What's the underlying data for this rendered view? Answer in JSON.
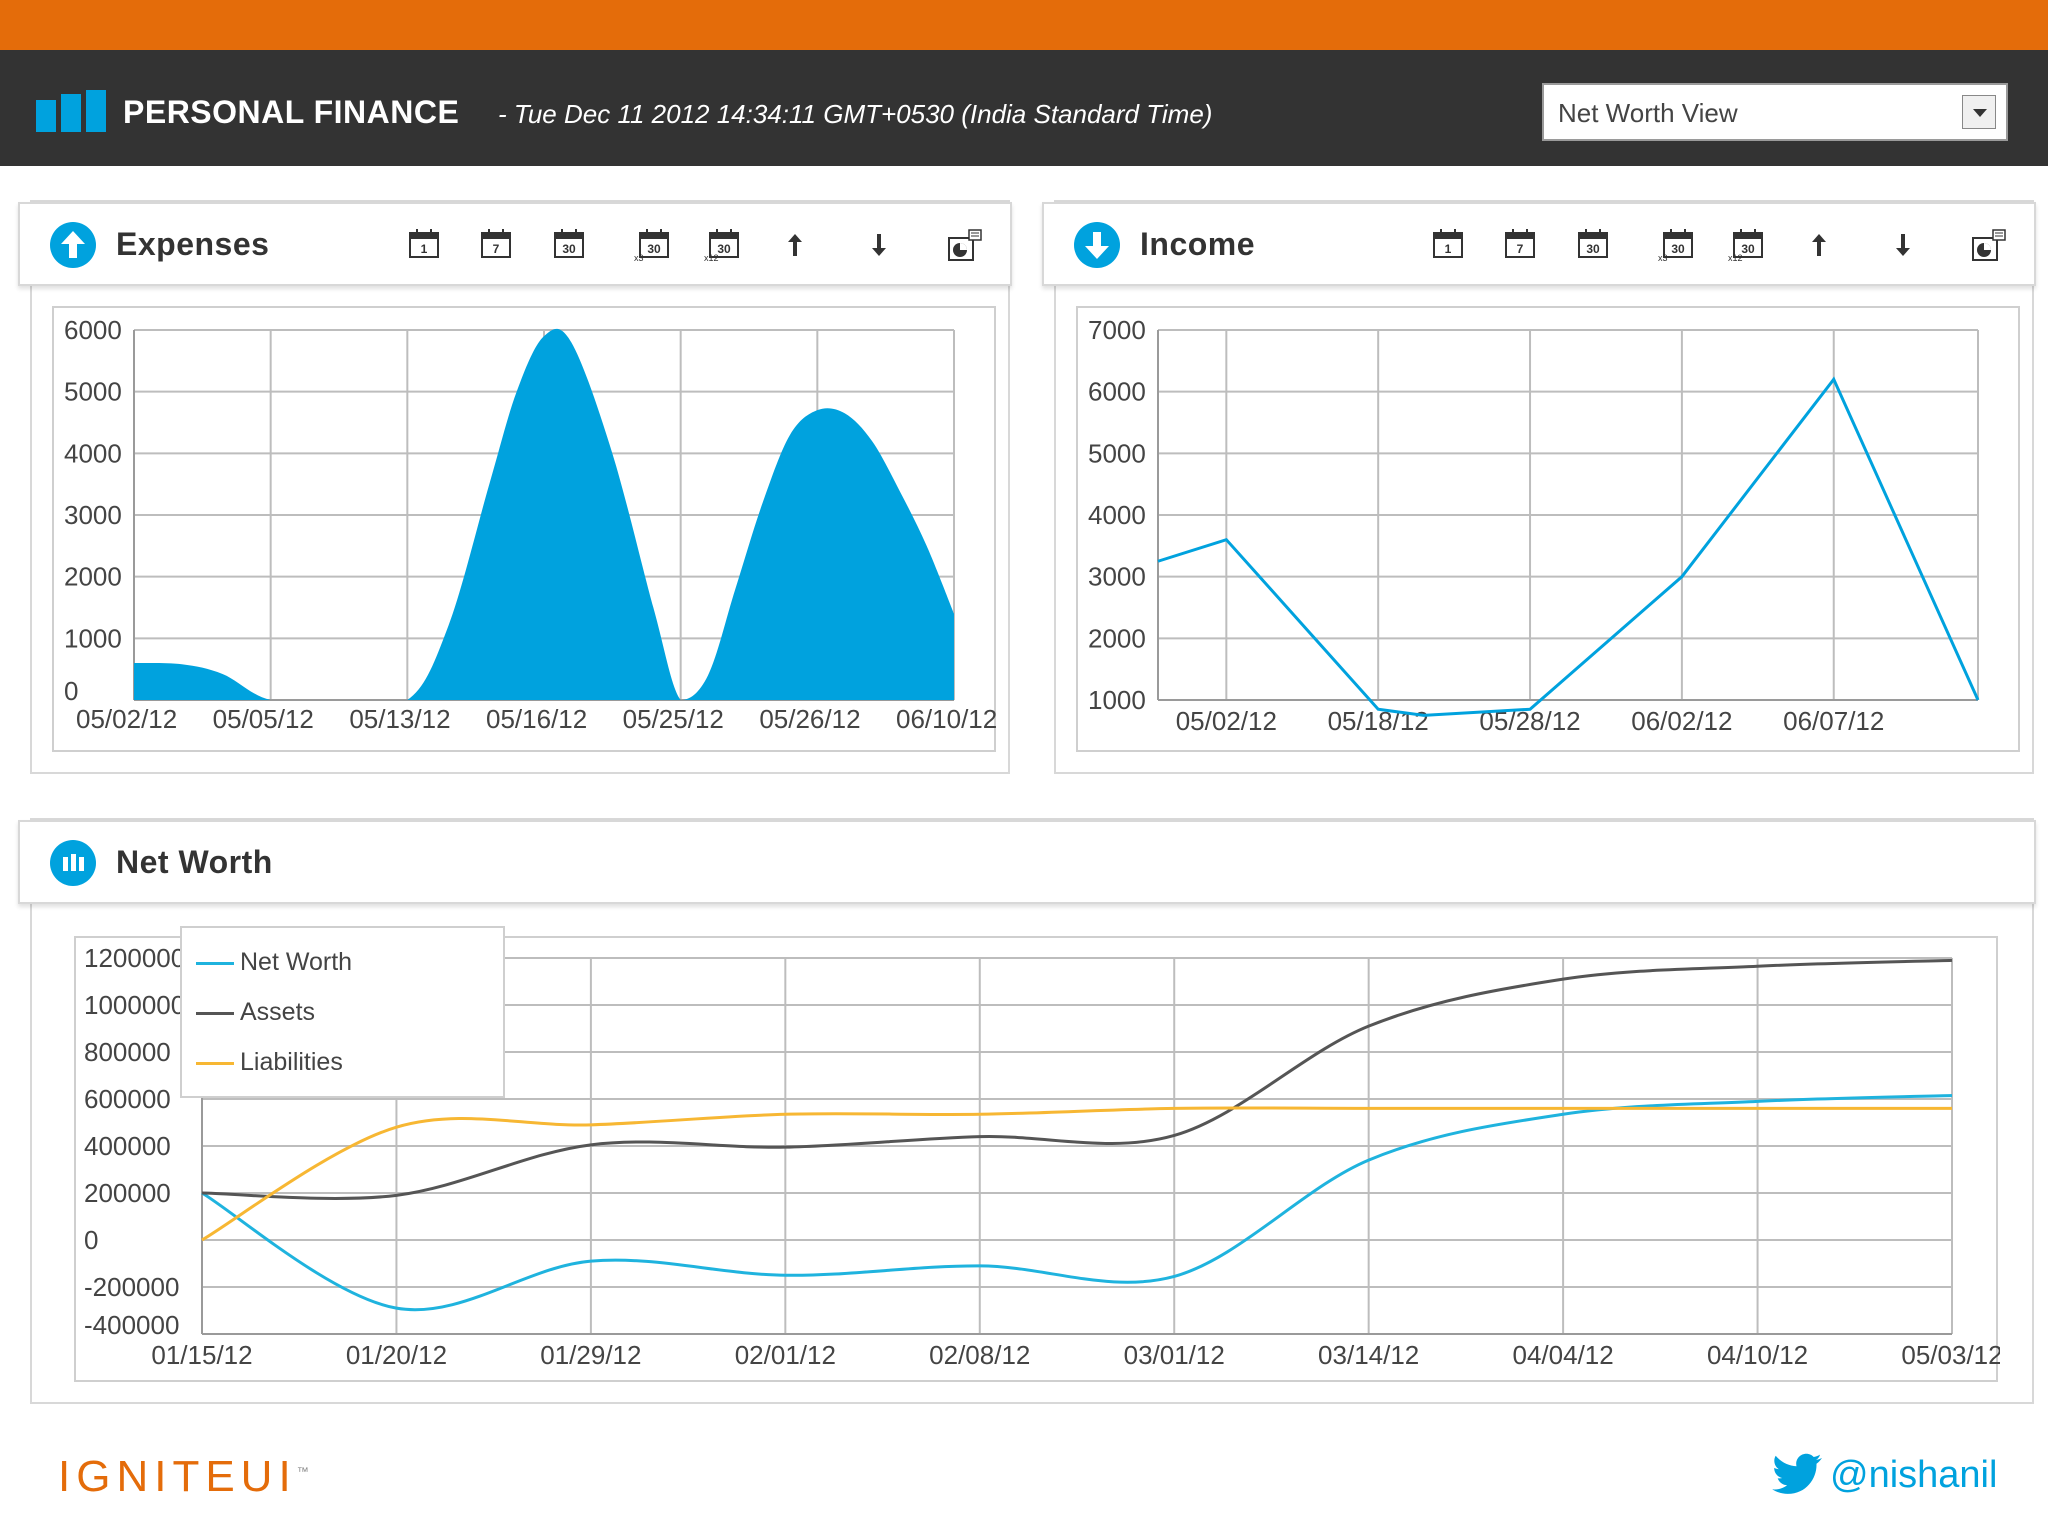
{
  "header": {
    "title": "PERSONAL FINANCE",
    "date": "- Tue Dec 11 2012 14:34:11 GMT+0530 (India Standard Time)",
    "view_select": {
      "selected": "Net Worth View"
    },
    "colors": {
      "accent": "#00A2DE",
      "top_bar": "#E46C0A",
      "header_bg": "#333333"
    }
  },
  "toolbar": {
    "tools": [
      "calendar-1-day-icon",
      "calendar-7-day-icon",
      "calendar-30-day-icon",
      "calendar-90-day-icon",
      "calendar-360-day-icon",
      "sort-ascending-icon",
      "sort-descending-icon",
      "chart-options-icon"
    ],
    "labels": {
      "day1": "1",
      "day7": "7",
      "day30": "30",
      "x3": "x3",
      "x12": "x12"
    }
  },
  "expenses": {
    "title": "Expenses",
    "chart_data": {
      "type": "area",
      "categories": [
        "05/02/12",
        "05/05/12",
        "05/13/12",
        "05/16/12",
        "05/25/12",
        "05/26/12",
        "06/10/12"
      ],
      "y_ticks": [
        "6000",
        "5000",
        "4000",
        "3000",
        "2000",
        "1000",
        "0"
      ],
      "ylim": [
        0,
        6000
      ],
      "series": [
        {
          "color": "#00A2DE",
          "x": [
            0,
            0.35,
            0.65,
            1,
            1.5,
            2,
            2.3,
            2.6,
            2.8,
            3,
            3.2,
            3.5,
            3.8,
            4,
            4.2,
            4.4,
            4.6,
            4.8,
            5,
            5.2,
            5.4,
            5.6,
            5.8,
            6
          ],
          "values": [
            600,
            580,
            420,
            0,
            0,
            0,
            1200,
            3500,
            5000,
            5900,
            5800,
            4000,
            1500,
            0,
            400,
            1800,
            3200,
            4300,
            4700,
            4650,
            4200,
            3400,
            2500,
            1400
          ]
        }
      ],
      "grid": true
    }
  },
  "income": {
    "title": "Income",
    "chart_data": {
      "type": "line",
      "categories": [
        "05/02/12",
        "05/18/12",
        "05/28/12",
        "06/02/12",
        "06/07/12"
      ],
      "y_ticks": [
        "7000",
        "6000",
        "5000",
        "4000",
        "3000",
        "2000",
        "1000"
      ],
      "ylim": [
        1000,
        7000
      ],
      "series": [
        {
          "color": "#00A2DE",
          "x": [
            -0.45,
            0,
            1,
            1.3,
            2,
            3,
            4,
            4.95
          ],
          "values": [
            3250,
            3600,
            850,
            750,
            850,
            3000,
            6200,
            1000
          ]
        }
      ],
      "grid": true
    }
  },
  "networth": {
    "title": "Net Worth",
    "legend": [
      {
        "name": "Net Worth",
        "color": "#1FB3DE"
      },
      {
        "name": "Assets",
        "color": "#555555"
      },
      {
        "name": "Liabilities",
        "color": "#F7B733"
      }
    ],
    "chart_data": {
      "type": "line",
      "categories": [
        "01/15/12",
        "01/20/12",
        "01/29/12",
        "02/01/12",
        "02/08/12",
        "03/01/12",
        "03/14/12",
        "04/04/12",
        "04/10/12",
        "05/03/12"
      ],
      "y_ticks": [
        "1200000",
        "1000000",
        "800000",
        "600000",
        "400000",
        "200000",
        "0",
        "-200000",
        "-400000"
      ],
      "ylim": [
        -400000,
        1200000
      ],
      "series": [
        {
          "name": "Net Worth",
          "color": "#1FB3DE",
          "values": [
            200000,
            -290000,
            -90000,
            -150000,
            -110000,
            -155000,
            340000,
            535000,
            590000,
            615000
          ]
        },
        {
          "name": "Assets",
          "color": "#555555",
          "values": [
            200000,
            190000,
            405000,
            395000,
            440000,
            445000,
            910000,
            1110000,
            1165000,
            1190000
          ]
        },
        {
          "name": "Liabilities",
          "color": "#F7B733",
          "values": [
            0,
            480000,
            490000,
            535000,
            535000,
            560000,
            560000,
            560000,
            560000,
            560000
          ]
        }
      ],
      "grid": true,
      "legend_position": "top-left"
    }
  },
  "footer": {
    "logo": "IGNITEUI",
    "tm": "™",
    "twitter_handle": "@nishanil"
  }
}
